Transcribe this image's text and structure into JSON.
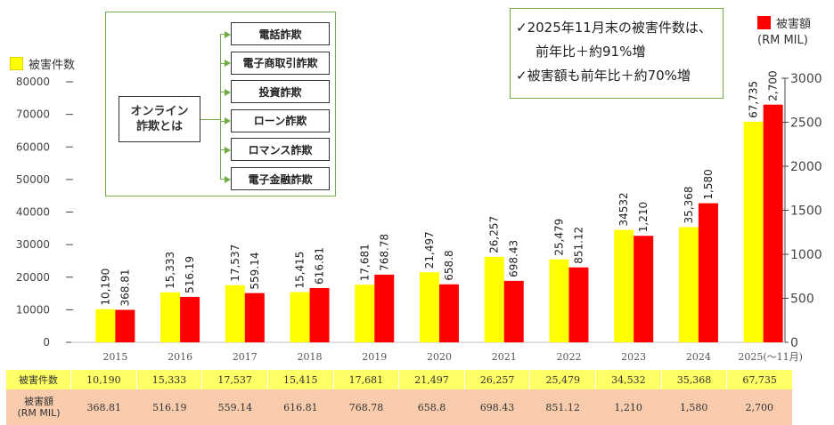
{
  "legend": {
    "count_label": "被害件数",
    "amount_label_line1": "被害額",
    "amount_label_line2": "(RM MIL)"
  },
  "definition_box": {
    "title": "オンライン\n詐欺とは",
    "items": [
      "電話詐欺",
      "電子商取引詐欺",
      "投資詐欺",
      "ローン詐欺",
      "ロマンス詐欺",
      "電子金融詐欺"
    ]
  },
  "callout": {
    "line1": "✓2025年11月末の被害件数は、",
    "line2": "前年比＋約91%増",
    "line3": "✓被害額も前年比＋約70%増"
  },
  "table": {
    "row1_header": "被害件数",
    "row1_values": [
      "10,190",
      "15,333",
      "17,537",
      "15,415",
      "17,681",
      "21,497",
      "26,257",
      "25,479",
      "34,532",
      "35,368",
      "67,735"
    ],
    "row2_header": "被害額\n(RM MIL)",
    "row2_values": [
      "368.81",
      "516.19",
      "559.14",
      "616.81",
      "768.78",
      "658.8",
      "698.43",
      "851.12",
      "1,210",
      "1,580",
      "2,700"
    ]
  },
  "chart_data": {
    "type": "bar",
    "categories": [
      "2015",
      "2016",
      "2017",
      "2018",
      "2019",
      "2020",
      "2021",
      "2022",
      "2023",
      "2024",
      "2025(～11月)"
    ],
    "series": [
      {
        "name": "被害件数",
        "axis": "left",
        "color": "#ffff00",
        "values": [
          10190,
          15333,
          17537,
          15415,
          17681,
          21497,
          26257,
          25479,
          34532,
          35368,
          67735
        ],
        "labels": [
          "10,190",
          "15,333",
          "17,537",
          "15,415",
          "17,681",
          "21,497",
          "26,257",
          "25,479",
          "34532",
          "35,368",
          "67,735"
        ]
      },
      {
        "name": "被害額 (RM MIL)",
        "axis": "right",
        "color": "#ff0000",
        "values": [
          368.81,
          516.19,
          559.14,
          616.81,
          768.78,
          658.8,
          698.43,
          851.12,
          1210,
          1580,
          2700
        ],
        "labels": [
          "368.81",
          "516.19",
          "559.14",
          "616.81",
          "768.78",
          "658.8",
          "698.43",
          "851.12",
          "1,210",
          "1,580",
          "2,700"
        ]
      }
    ],
    "y_left": {
      "min": 0,
      "max": 80000,
      "ticks": [
        "0",
        "10000",
        "20000",
        "30000",
        "40000",
        "50000",
        "60000",
        "70000",
        "80000"
      ]
    },
    "y_right": {
      "min": 0,
      "max": 3000,
      "ticks": [
        "0",
        "500",
        "1000",
        "1500",
        "2000",
        "2500",
        "3000"
      ]
    },
    "grid": false,
    "legend_position": "top-left and top-right"
  }
}
